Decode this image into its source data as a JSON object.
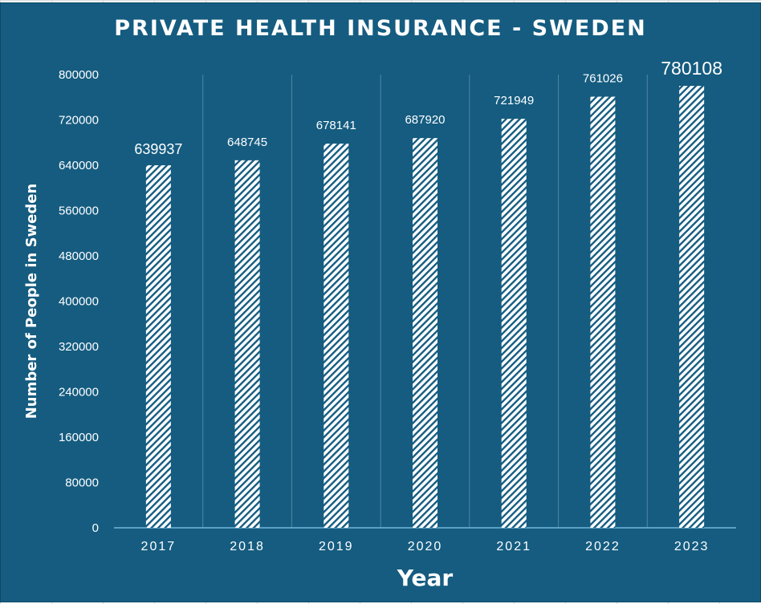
{
  "chart_data": {
    "type": "bar",
    "title": "PRIVATE HEALTH INSURANCE - SWEDEN",
    "xlabel": "Year",
    "ylabel": "Number of People in Sweden",
    "categories": [
      "2017",
      "2018",
      "2019",
      "2020",
      "2021",
      "2022",
      "2023"
    ],
    "values": [
      639937,
      648745,
      678141,
      687920,
      721949,
      761026,
      780108
    ],
    "ylim": [
      0,
      800000
    ],
    "yticks": [
      "0",
      "80000",
      "160000",
      "240000",
      "320000",
      "400000",
      "480000",
      "560000",
      "640000",
      "720000",
      "800000"
    ],
    "grid": "vertical category separators",
    "legend": "none",
    "colors": {
      "background": "#155c80",
      "bar_fill": "#ffffff",
      "bar_hatch": "#155c80",
      "axis_line": "#6fb7dc",
      "gridline": "#4f87a5",
      "text": "#ffffff"
    }
  }
}
